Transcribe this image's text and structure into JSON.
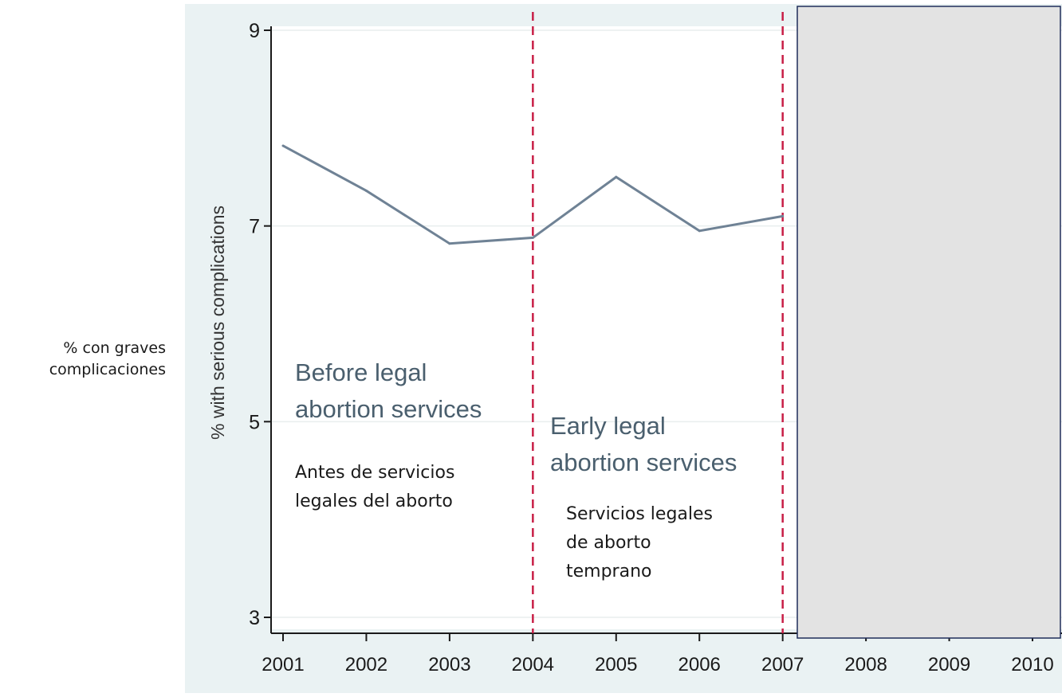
{
  "outer_label": {
    "line1": "% con graves",
    "line2": "complicaciones"
  },
  "chart_data": {
    "type": "line",
    "ylabel": "% with serious complications",
    "xlabel": "",
    "x": [
      2001,
      2002,
      2003,
      2004,
      2005,
      2006,
      2007
    ],
    "series": [
      {
        "values": [
          7.82,
          7.36,
          6.82,
          6.88,
          7.5,
          6.95,
          7.1
        ]
      }
    ],
    "x_ticks": [
      "2001",
      "2002",
      "2003",
      "2004",
      "2005",
      "2006",
      "2007",
      "2008",
      "2009",
      "2010"
    ],
    "y_ticks": [
      "3",
      "5",
      "7",
      "9"
    ],
    "xlim": [
      2001,
      2010
    ],
    "ylim": [
      3,
      9
    ],
    "grid": true,
    "line_color": "#6f8295",
    "background_color": "#eaf2f3",
    "reference_lines": [
      {
        "x": 2004,
        "color": "#c81e46",
        "style": "dashed"
      },
      {
        "x": 2007,
        "color": "#c81e46",
        "style": "dashed"
      }
    ],
    "annotations": [
      {
        "id": "before",
        "lines": [
          "Before legal",
          "abortion services"
        ],
        "color": "#4a5f6e"
      },
      {
        "id": "before-es",
        "lines": [
          "Antes de servicios",
          "legales del aborto"
        ],
        "color": "#1a1a1a"
      },
      {
        "id": "early",
        "lines": [
          "Early legal",
          "abortion services"
        ],
        "color": "#4a5f6e"
      },
      {
        "id": "early-es",
        "lines": [
          "Servicios legales",
          "de aborto",
          "temprano"
        ],
        "color": "#1a1a1a"
      }
    ],
    "overlay_color": "#e3e3e3",
    "overlay_border": "#1f2d5a"
  }
}
